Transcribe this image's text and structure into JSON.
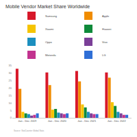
{
  "chart_data": {
    "type": "bar",
    "title": "Mobile Vendor Market Share Worldwide",
    "categories": [
      "Jan - Dec 2019",
      "Jan - Dec 2020",
      "Jan - Dec 2021",
      "Jan - Dec 2022"
    ],
    "series": [
      {
        "name": "Samsung",
        "color": "#d7182a",
        "values": [
          33,
          30.5,
          31.5,
          30.5
        ]
      },
      {
        "name": "Apple",
        "color": "#f08c00",
        "values": [
          19.5,
          22,
          24.5,
          27
        ]
      },
      {
        "name": "Xiaomi",
        "color": "#f5c400",
        "values": [
          4,
          5.5,
          9,
          10.5
        ]
      },
      {
        "name": "Huawei",
        "color": "#0e8a3a",
        "values": [
          3,
          6,
          7,
          8
        ]
      },
      {
        "name": "Oppo",
        "color": "#1c8fbf",
        "values": [
          2.5,
          3.5,
          4,
          4
        ]
      },
      {
        "name": "Vivo",
        "color": "#7b3f98",
        "values": [
          1.5,
          3,
          3,
          3
        ]
      },
      {
        "name": "Motorola",
        "color": "#c2338f",
        "values": [
          2,
          2.5,
          2.5,
          2
        ]
      },
      {
        "name": "LG",
        "color": "#2f6fd6",
        "values": [
          3,
          3,
          2.5,
          2
        ]
      }
    ],
    "ylim": [
      0,
      35
    ],
    "yticks": [
      0,
      5,
      10,
      15,
      20,
      25,
      30,
      35
    ],
    "grid": false,
    "legend": "top-right",
    "annotations": [
      "Source: StatCounter Global Stats"
    ]
  }
}
